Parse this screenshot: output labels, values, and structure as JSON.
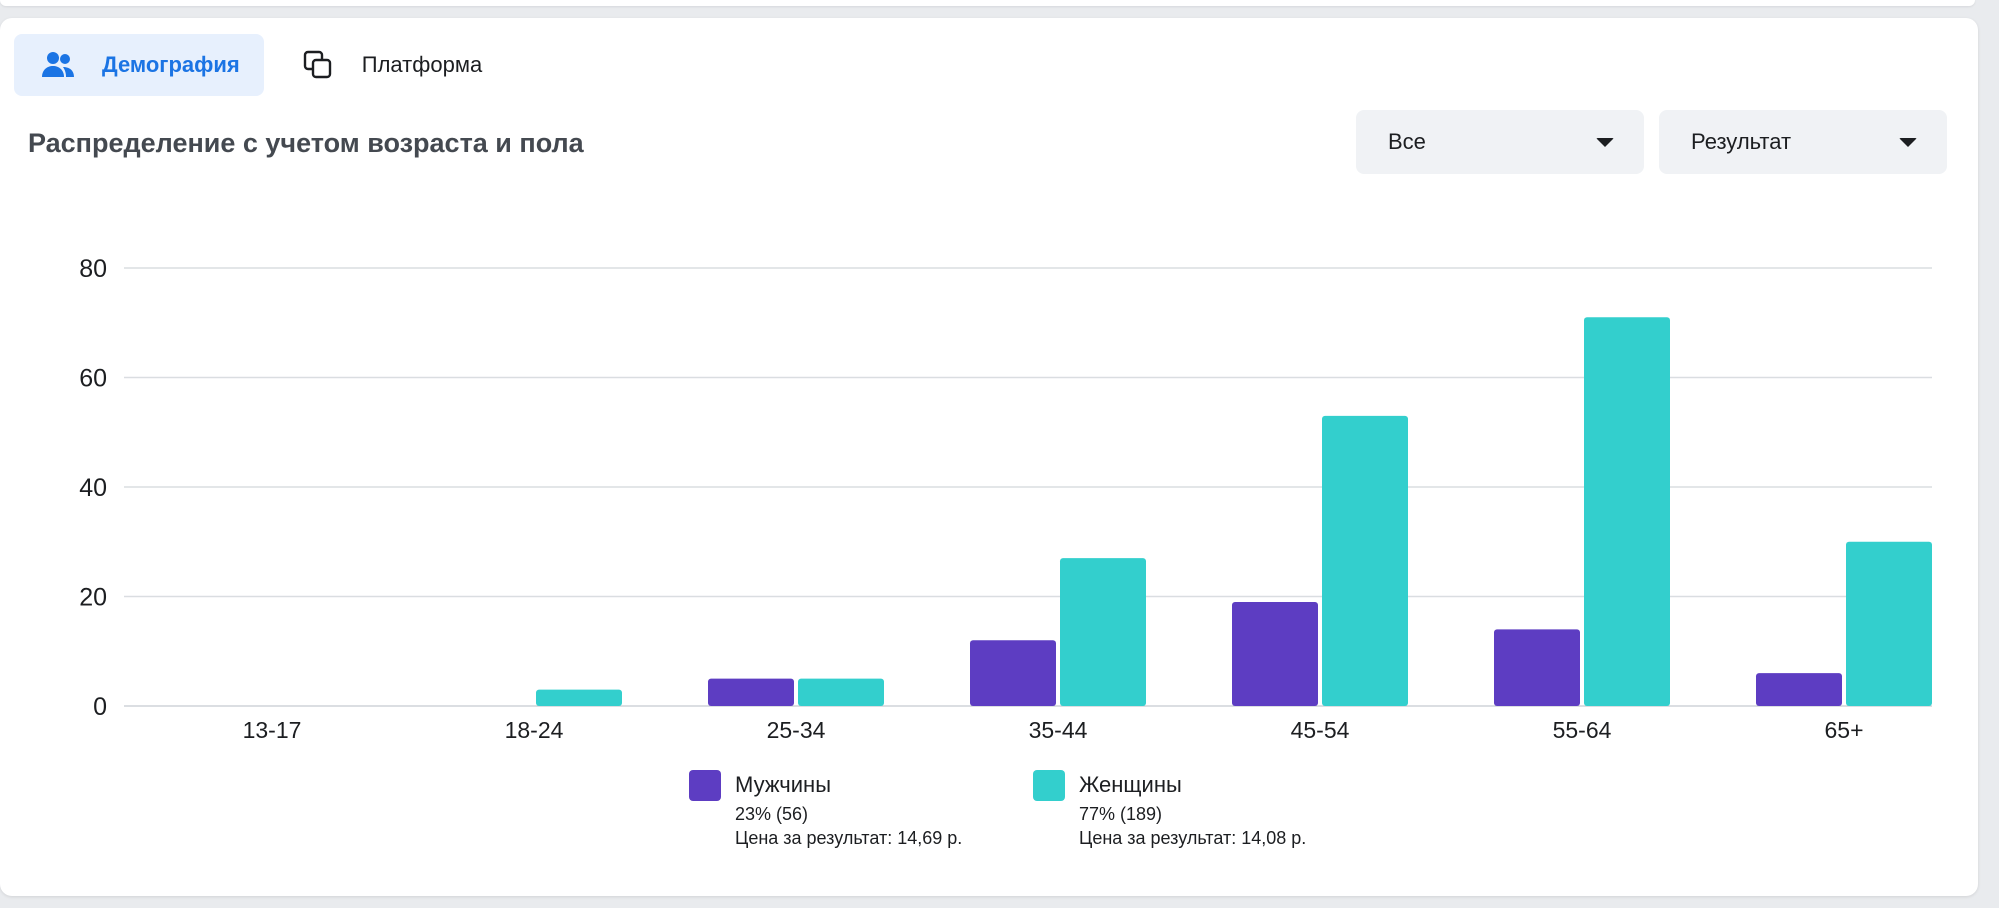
{
  "tabs": [
    {
      "label": "Демография",
      "icon": "people-icon",
      "active": true
    },
    {
      "label": "Платформа",
      "icon": "platform-icon",
      "active": false
    }
  ],
  "filters": {
    "audience": {
      "value": "Все"
    },
    "metric": {
      "value": "Результат"
    }
  },
  "colors": {
    "men": "#5d3dc2",
    "women": "#33cfcd",
    "accent": "#1b74e4"
  },
  "chart_data": {
    "type": "bar",
    "title": "Распределение с учетом возраста и пола",
    "categories": [
      "13-17",
      "18-24",
      "25-34",
      "35-44",
      "45-54",
      "55-64",
      "65+"
    ],
    "series": [
      {
        "name": "Мужчины",
        "values": [
          0,
          0,
          5,
          12,
          19,
          14,
          6
        ]
      },
      {
        "name": "Женщины",
        "values": [
          0,
          3,
          5,
          27,
          53,
          71,
          30
        ]
      }
    ],
    "yticks": [
      "0",
      "20",
      "40",
      "60",
      "80"
    ],
    "ylim": [
      0,
      80
    ],
    "grid": true,
    "legend_position": "bottom"
  },
  "legend": [
    {
      "name": "Мужчины",
      "share": "23% (56)",
      "cost": "Цена за результат: 14,69 р."
    },
    {
      "name": "Женщины",
      "share": "77% (189)",
      "cost": "Цена за результат: 14,08 р."
    }
  ]
}
